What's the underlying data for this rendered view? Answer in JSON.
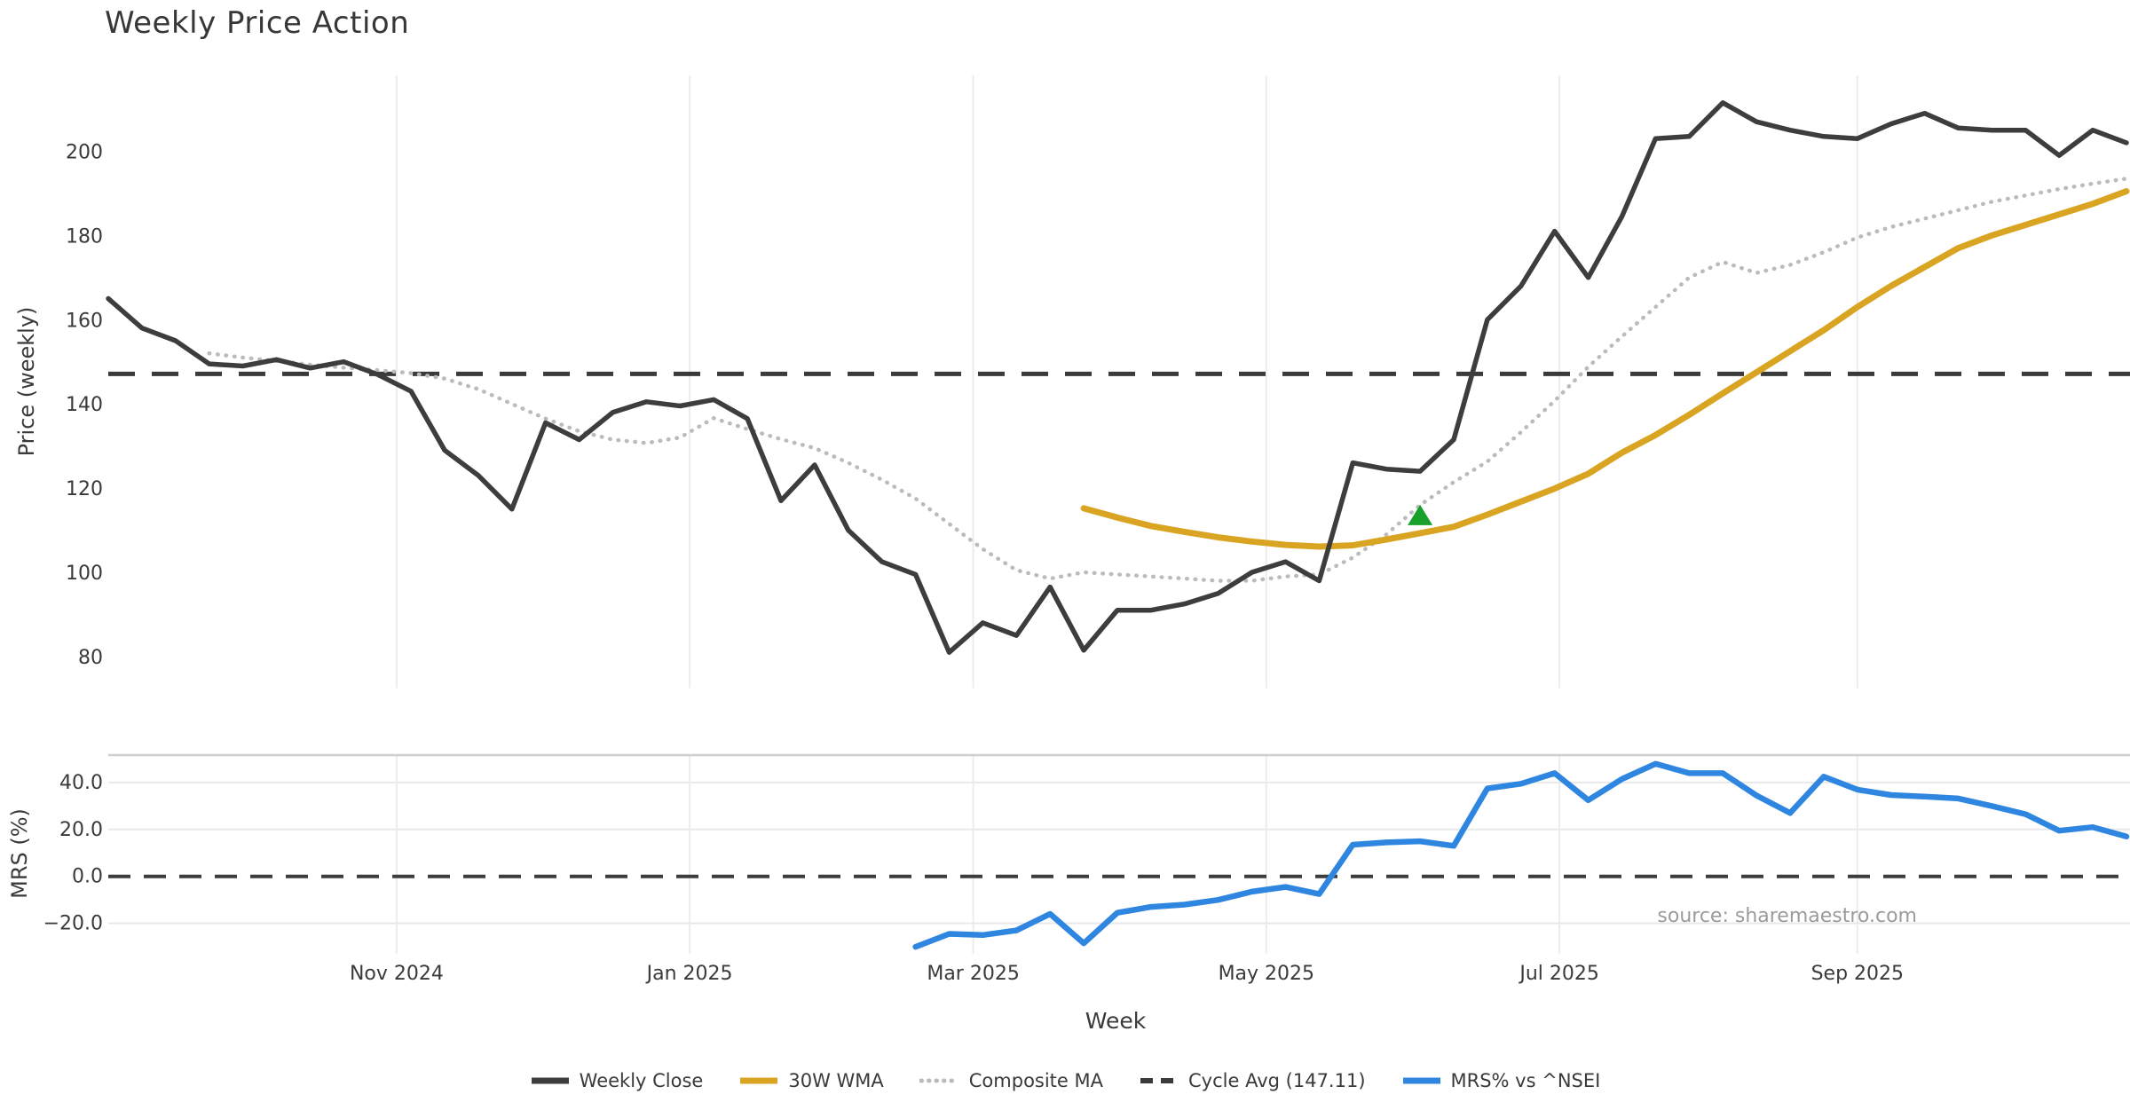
{
  "title": "Weekly Price Action",
  "source_text": "source: sharemaestro.com",
  "colors": {
    "weekly_close": "#3d3d3d",
    "wma_30w": "#d9a421",
    "composite_ma": "#bbbbbb",
    "cycle_avg": "#3a3a3a",
    "mrs_blue": "#2e86e0",
    "signal_green": "#17a12b",
    "gridline": "#ececec",
    "panel_spine": "#cfcfcf",
    "zero_line": "#3d3d3d",
    "tick_text": "#3a3a3a",
    "source_text": "#9b9b9b"
  },
  "chart_data": [
    {
      "type": "line",
      "panel": "price",
      "title": "Weekly Price Action",
      "ylabel": "Price (weekly)",
      "xlabel": "Week",
      "x_start_date": "2024-09-02",
      "x_step": "1 week",
      "ylim": [
        72.5,
        218
      ],
      "y_ticks": [
        200,
        180,
        160,
        140,
        120,
        100,
        80
      ],
      "x_ticks": [
        {
          "label": "Nov 2024",
          "day": 60
        },
        {
          "label": "Jan 2025",
          "day": 121
        },
        {
          "label": "Mar 2025",
          "day": 180
        },
        {
          "label": "May 2025",
          "day": 241
        },
        {
          "label": "Jul 2025",
          "day": 302
        },
        {
          "label": "Sep 2025",
          "day": 364
        }
      ],
      "grid": "vertical-months",
      "series": [
        {
          "name": "Weekly Close",
          "style": "solid",
          "color": "#3d3d3d",
          "width": 5.5,
          "start_week": 0,
          "values": [
            165,
            158,
            155,
            149.5,
            149,
            150.5,
            148.5,
            150,
            147,
            143,
            129,
            123,
            115,
            135.5,
            131.5,
            138,
            140.5,
            139.5,
            141,
            136.5,
            117,
            125.5,
            110,
            102.5,
            99.5,
            81,
            88,
            85,
            96.5,
            81.5,
            91,
            91,
            92.5,
            95,
            100,
            102.5,
            98,
            126,
            124.5,
            124,
            131.5,
            160,
            168,
            181,
            170,
            184.5,
            203,
            203.5,
            211.5,
            207,
            205,
            203.5,
            203,
            206.5,
            209,
            205.5,
            205,
            205,
            199,
            205,
            202
          ]
        },
        {
          "name": "30W WMA",
          "style": "solid",
          "color": "#d9a421",
          "width": 7,
          "start_week": 29,
          "values": [
            115.2,
            113,
            111,
            109.6,
            108.3,
            107.3,
            106.5,
            106.1,
            106.4,
            107.8,
            109.3,
            110.8,
            113.7,
            116.8,
            119.9,
            123.4,
            128.4,
            132.6,
            137.4,
            142.5,
            147.5,
            152.5,
            157.5,
            163,
            168,
            172.5,
            177,
            180,
            182.5,
            185,
            187.5,
            190.5
          ]
        },
        {
          "name": "Composite MA",
          "style": "dotted",
          "color": "#bbbbbb",
          "width": 4.5,
          "start_week": 3,
          "values": [
            152,
            151,
            150.2,
            149.3,
            148.6,
            148,
            147.3,
            146,
            143.5,
            140,
            136.5,
            133.5,
            131.5,
            130.7,
            132,
            136.6,
            134,
            131.6,
            129.5,
            126,
            122,
            117.5,
            111.5,
            105.5,
            100.5,
            98.5,
            100,
            99.5,
            99,
            98.5,
            98,
            98,
            99,
            99.5,
            103.5,
            109,
            116,
            121.4,
            126.3,
            133.3,
            140.7,
            148.8,
            156,
            163,
            170,
            173.7,
            171.1,
            173,
            176,
            179.5,
            182,
            184,
            186,
            188,
            189.5,
            191,
            192.3,
            193.5
          ]
        },
        {
          "name": "Cycle Avg (147.11)",
          "style": "dashed",
          "color": "#3a3a3a",
          "width": 5,
          "constant": 147.11
        }
      ],
      "marker": {
        "shape": "triangle-up",
        "color": "#17a12b",
        "week": 39,
        "value": 113.5
      }
    },
    {
      "type": "line",
      "panel": "mrs",
      "ylabel": "MRS (%)",
      "ylim": [
        -33,
        51.7
      ],
      "y_ticks": [
        40,
        20,
        0,
        -20
      ],
      "y_tick_labels": [
        "40.0",
        "20.0",
        "0.0",
        "−20.0"
      ],
      "zero_line_dashed": true,
      "series": [
        {
          "name": "MRS% vs ^NSEI",
          "style": "solid",
          "color": "#2e86e0",
          "width": 6.5,
          "start_week": 24,
          "values": [
            -30,
            -24.5,
            -25,
            -23,
            -16,
            -28.5,
            -15.5,
            -13,
            -12,
            -10,
            -6.5,
            -4.5,
            -7.5,
            13.5,
            14.5,
            15,
            13,
            37.5,
            39.5,
            44,
            32.5,
            41.5,
            48,
            44,
            44,
            34.5,
            27,
            42.5,
            37,
            34.7,
            34,
            33.2,
            30,
            26.5,
            19.5,
            21,
            17
          ]
        }
      ]
    }
  ],
  "legend": [
    {
      "label": "Weekly Close",
      "color": "#3d3d3d",
      "style": "solid"
    },
    {
      "label": "30W WMA",
      "color": "#d9a421",
      "style": "solid"
    },
    {
      "label": "Composite MA",
      "color": "#bbbbbb",
      "style": "dotted"
    },
    {
      "label": "Cycle Avg (147.11)",
      "color": "#3a3a3a",
      "style": "dashed"
    },
    {
      "label": "MRS% vs ^NSEI",
      "color": "#2e86e0",
      "style": "solid"
    }
  ],
  "axis_titles": {
    "price": "Price (weekly)",
    "mrs": "MRS (%)",
    "x": "Week"
  }
}
